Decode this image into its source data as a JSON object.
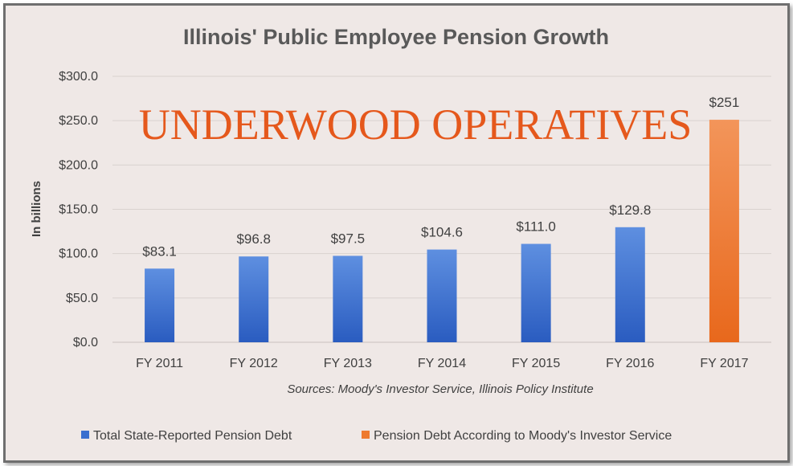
{
  "chart_data": {
    "type": "bar",
    "title": "Illinois' Public Employee Pension Growth",
    "ylabel": "In billions",
    "xlabel": "",
    "source_note": "Sources: Moody's Investor Service, Illinois Policy Institute",
    "watermark": "UNDERWOOD OPERATIVES",
    "categories": [
      "FY 2011",
      "FY 2012",
      "FY 2013",
      "FY 2014",
      "FY 2015",
      "FY 2016",
      "FY 2017"
    ],
    "ylim": [
      0,
      300
    ],
    "yticks": [
      0,
      50,
      100,
      150,
      200,
      250,
      300
    ],
    "ytick_labels": [
      "$0.0",
      "$50.0",
      "$100.0",
      "$150.0",
      "$200.0",
      "$250.0",
      "$300.0"
    ],
    "grid": true,
    "legend_position": "bottom",
    "series": [
      {
        "name": "Total State-Reported Pension Debt",
        "color": "#3a6fcf",
        "values": [
          83.1,
          96.8,
          97.5,
          104.6,
          111.0,
          129.8,
          null
        ],
        "labels": [
          "$83.1",
          "$96.8",
          "$97.5",
          "$104.6",
          "$111.0",
          "$129.8",
          ""
        ]
      },
      {
        "name": "Pension Debt According to Moody's Investor Service",
        "color": "#ee7a2e",
        "values": [
          null,
          null,
          null,
          null,
          null,
          null,
          251
        ],
        "labels": [
          "",
          "",
          "",
          "",
          "",
          "",
          "$251"
        ]
      }
    ]
  }
}
